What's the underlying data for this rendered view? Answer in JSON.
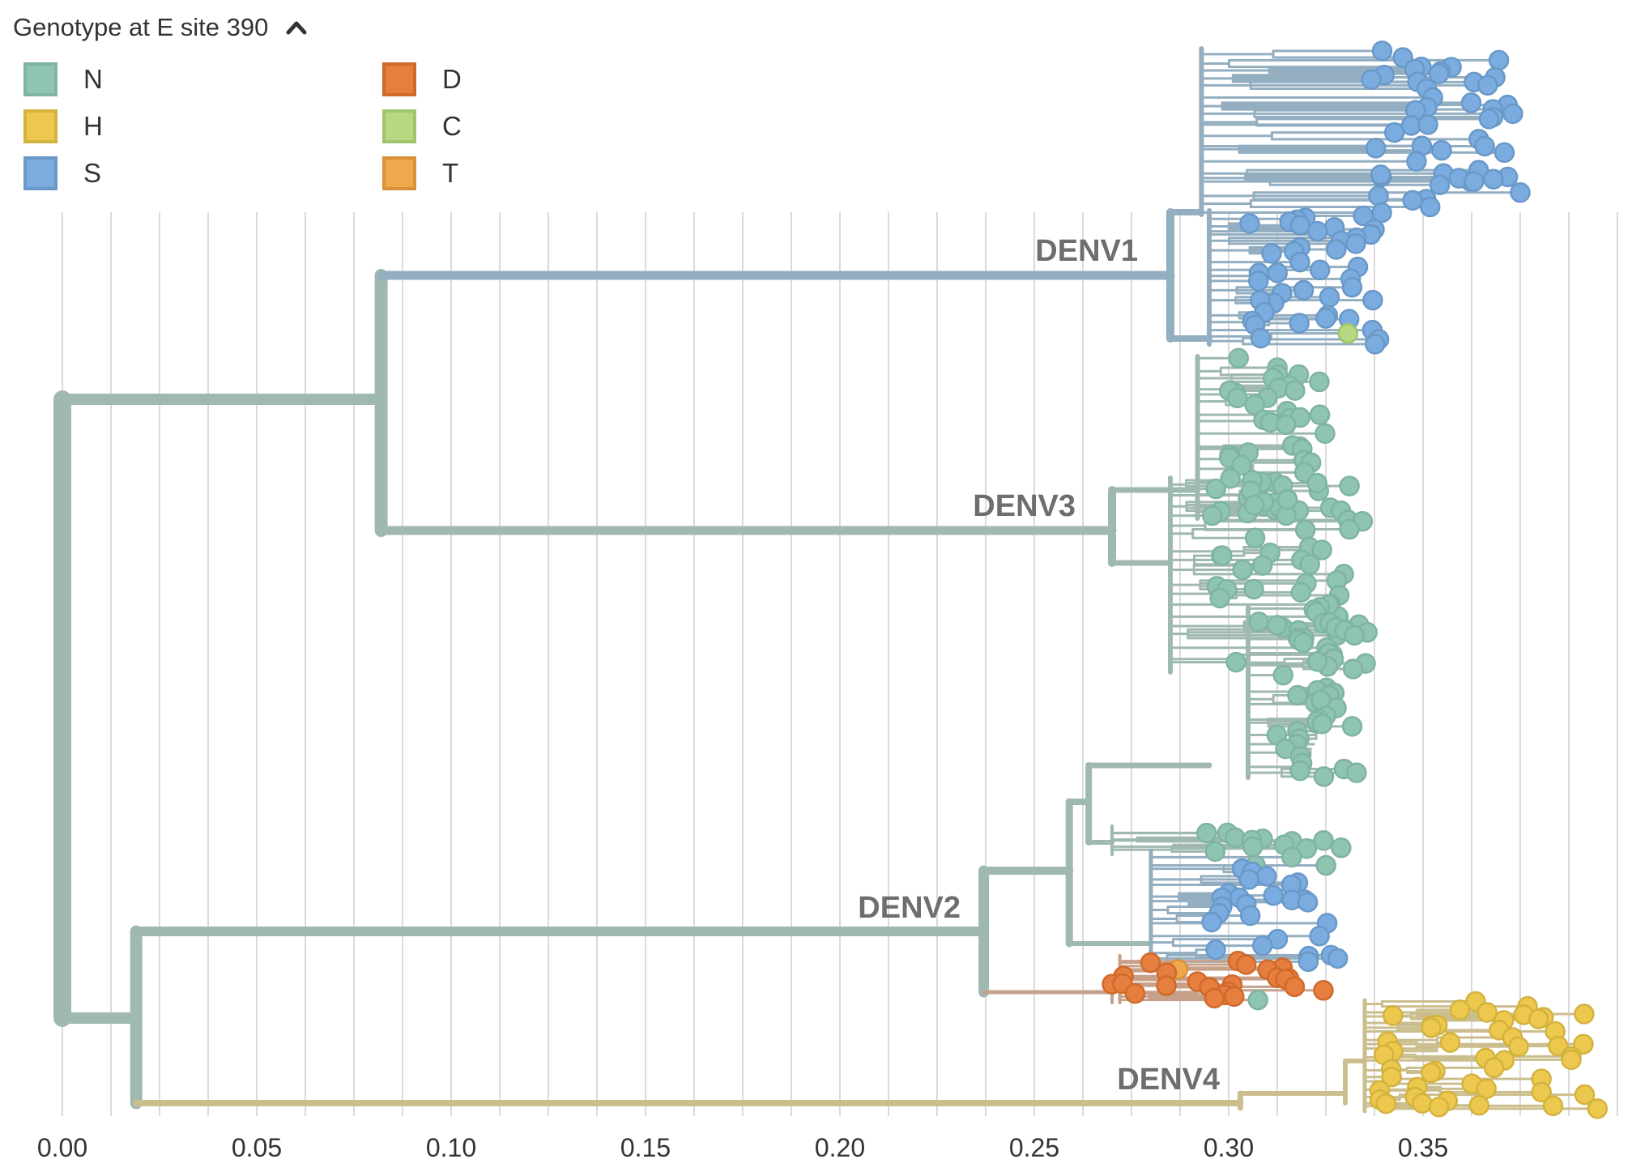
{
  "legend": {
    "title": "Genotype at E site 390",
    "toggle_icon": "chevron-up-icon",
    "items": [
      {
        "label": "N",
        "fill": "#8ec4b1",
        "stroke": "#7fb3a2"
      },
      {
        "label": "H",
        "fill": "#ecc94e",
        "stroke": "#d3b23e"
      },
      {
        "label": "S",
        "fill": "#7aace0",
        "stroke": "#6a98c7"
      },
      {
        "label": "D",
        "fill": "#e57e3e",
        "stroke": "#cf6a2a"
      },
      {
        "label": "C",
        "fill": "#b7d882",
        "stroke": "#9fc46b"
      },
      {
        "label": "T",
        "fill": "#f0a84c",
        "stroke": "#d8913a"
      }
    ]
  },
  "chart_data": {
    "type": "phylogenetic-tree",
    "colorBy": "Genotype at E site 390",
    "xlim": [
      0,
      0.4
    ],
    "x_ticks": [
      "0.00",
      "0.05",
      "0.10",
      "0.15",
      "0.20",
      "0.25",
      "0.30",
      "0.35"
    ],
    "x_tick_values": [
      0,
      0.05,
      0.1,
      0.15,
      0.2,
      0.25,
      0.3,
      0.35
    ],
    "branch_colors": {
      "DENV1": "#93aec0",
      "DENV3": "#9fb8b0",
      "DENV2": "#9fb8b0",
      "DENV2_D": "#c7a08a",
      "DENV4": "#cbbe8e",
      "root": "#9fb8b0"
    },
    "internal_nodes": {
      "root": 0.0,
      "denv1_denv3": 0.082,
      "denv2_denv4": 0.019,
      "DENV1": 0.285,
      "DENV3": 0.27,
      "DENV2": 0.237,
      "DENV4": 0.303
    },
    "clades": [
      {
        "name": "DENV1",
        "genotype": "S",
        "tip_x_range": [
          0.305,
          0.378
        ],
        "minor_genotypes": [
          "C"
        ]
      },
      {
        "name": "DENV3",
        "genotype": "N",
        "tip_x_range": [
          0.29,
          0.336
        ]
      },
      {
        "name": "DENV2",
        "genotype": "N",
        "tip_x_range": [
          0.28,
          0.335
        ],
        "minor_genotypes": [
          "S",
          "D",
          "T"
        ]
      },
      {
        "name": "DENV4",
        "genotype": "H",
        "tip_x_range": [
          0.338,
          0.398
        ]
      }
    ]
  }
}
